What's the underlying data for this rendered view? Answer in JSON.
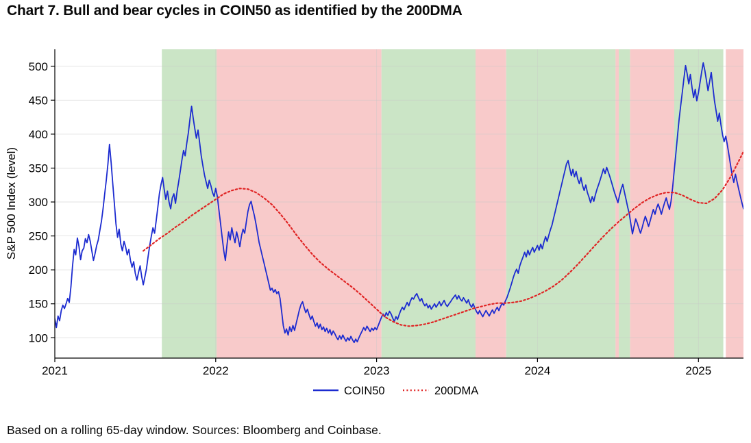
{
  "chart_data": {
    "type": "line",
    "title": "Chart 7. Bull and bear cycles in COIN50 as identified by the 200DMA",
    "caption": "Based on a rolling 65-day window. Sources: Bloomberg and Coinbase.",
    "ylabel": "S&P 500 Index (level)",
    "xlabel": "",
    "xlim": [
      2021.0,
      2025.28
    ],
    "ylim": [
      70,
      525
    ],
    "xticks": [
      2021,
      2022,
      2023,
      2024,
      2025
    ],
    "yticks": [
      100,
      150,
      200,
      250,
      300,
      350,
      400,
      450,
      500
    ],
    "grid": true,
    "colors": {
      "bull_band": "#cbe5c6",
      "bear_band": "#f8caca",
      "coin50": "#1c2bd0",
      "dma": "#e02424",
      "grid": "#c8c8c8",
      "axis": "#000000"
    },
    "legend": {
      "position": "bottom-center",
      "entries": [
        {
          "label": "COIN50",
          "style": "solid",
          "color": "#1c2bd0"
        },
        {
          "label": "200DMA",
          "style": "dotted",
          "color": "#e02424"
        }
      ]
    },
    "bands": [
      {
        "start": 2021.665,
        "end": 2022.005,
        "type": "bull"
      },
      {
        "start": 2022.005,
        "end": 2023.03,
        "type": "bear"
      },
      {
        "start": 2023.03,
        "end": 2023.615,
        "type": "bull"
      },
      {
        "start": 2023.615,
        "end": 2023.805,
        "type": "bear"
      },
      {
        "start": 2023.805,
        "end": 2024.485,
        "type": "bull"
      },
      {
        "start": 2024.485,
        "end": 2024.505,
        "type": "bear"
      },
      {
        "start": 2024.505,
        "end": 2024.575,
        "type": "bull"
      },
      {
        "start": 2024.575,
        "end": 2024.85,
        "type": "bear"
      },
      {
        "start": 2024.85,
        "end": 2025.155,
        "type": "bull"
      },
      {
        "start": 2025.17,
        "end": 2025.3,
        "type": "bear"
      }
    ],
    "series": [
      {
        "name": "COIN50",
        "t0": 2021.0,
        "dt": 0.01,
        "values": [
          128,
          115,
          132,
          125,
          140,
          148,
          143,
          150,
          158,
          152,
          175,
          205,
          230,
          222,
          247,
          235,
          215,
          228,
          232,
          246,
          240,
          252,
          242,
          228,
          214,
          224,
          236,
          244,
          258,
          272,
          290,
          312,
          332,
          356,
          385,
          358,
          328,
          298,
          268,
          248,
          260,
          238,
          228,
          242,
          234,
          222,
          230,
          214,
          204,
          212,
          195,
          185,
          196,
          206,
          190,
          178,
          190,
          202,
          220,
          236,
          250,
          262,
          254,
          272,
          292,
          312,
          326,
          336,
          318,
          304,
          316,
          300,
          290,
          306,
          312,
          298,
          316,
          330,
          346,
          362,
          376,
          368,
          386,
          402,
          422,
          441,
          424,
          408,
          394,
          406,
          388,
          368,
          354,
          340,
          330,
          320,
          332,
          324,
          314,
          308,
          320,
          308,
          288,
          268,
          248,
          228,
          214,
          236,
          256,
          244,
          262,
          250,
          240,
          256,
          246,
          234,
          250,
          260,
          254,
          270,
          286,
          296,
          301,
          290,
          280,
          268,
          254,
          240,
          230,
          220,
          210,
          200,
          190,
          180,
          170,
          173,
          167,
          171,
          165,
          168,
          158,
          138,
          118,
          107,
          113,
          104,
          116,
          109,
          118,
          111,
          121,
          131,
          141,
          149,
          153,
          144,
          137,
          142,
          134,
          127,
          132,
          124,
          117,
          122,
          114,
          120,
          112,
          116,
          109,
          114,
          107,
          112,
          104,
          110,
          106,
          101,
          97,
          103,
          98,
          104,
          99,
          95,
          100,
          96,
          102,
          97,
          93,
          98,
          94,
          100,
          105,
          110,
          115,
          111,
          117,
          113,
          109,
          114,
          111,
          115,
          112,
          118,
          124,
          130,
          135,
          131,
          137,
          133,
          139,
          135,
          129,
          124,
          131,
          127,
          134,
          140,
          145,
          141,
          147,
          152,
          147,
          154,
          159,
          157,
          162,
          165,
          159,
          154,
          158,
          151,
          147,
          150,
          144,
          148,
          142,
          146,
          150,
          145,
          149,
          153,
          147,
          151,
          155,
          149,
          146,
          150,
          153,
          157,
          160,
          163,
          157,
          162,
          157,
          154,
          159,
          155,
          151,
          156,
          149,
          145,
          150,
          144,
          139,
          135,
          140,
          135,
          131,
          136,
          140,
          136,
          132,
          137,
          141,
          136,
          141,
          145,
          140,
          146,
          151,
          148,
          154,
          159,
          166,
          173,
          181,
          189,
          196,
          201,
          195,
          206,
          213,
          219,
          226,
          219,
          229,
          222,
          228,
          233,
          226,
          231,
          236,
          229,
          238,
          231,
          241,
          249,
          242,
          251,
          259,
          266,
          276,
          286,
          296,
          306,
          316,
          326,
          336,
          346,
          356,
          361,
          350,
          339,
          348,
          337,
          345,
          334,
          327,
          336,
          324,
          317,
          325,
          314,
          307,
          299,
          308,
          301,
          311,
          319,
          326,
          333,
          341,
          349,
          342,
          351,
          344,
          337,
          329,
          321,
          313,
          306,
          299,
          310,
          319,
          326,
          315,
          304,
          293,
          283,
          268,
          253,
          264,
          275,
          269,
          261,
          254,
          262,
          271,
          279,
          272,
          264,
          272,
          281,
          289,
          282,
          291,
          297,
          290,
          282,
          291,
          299,
          306,
          297,
          289,
          301,
          322,
          347,
          372,
          397,
          422,
          442,
          462,
          482,
          501,
          489,
          474,
          488,
          469,
          454,
          466,
          449,
          461,
          476,
          491,
          505,
          494,
          479,
          464,
          478,
          491,
          469,
          449,
          434,
          419,
          431,
          414,
          399,
          389,
          397,
          384,
          369,
          354,
          339,
          329,
          341,
          330,
          319,
          309,
          299,
          290
        ]
      },
      {
        "name": "200DMA",
        "t0": 2021.55,
        "dt": 0.05,
        "values": [
          228,
          237,
          246,
          254,
          263,
          271,
          280,
          288,
          296,
          304,
          312,
          317,
          320,
          319,
          314,
          306,
          296,
          283,
          268,
          252,
          237,
          223,
          211,
          201,
          192,
          183,
          174,
          164,
          153,
          142,
          131,
          124,
          119,
          117,
          118,
          120,
          123,
          127,
          131,
          135,
          139,
          143,
          146,
          149,
          151,
          151,
          152,
          154,
          158,
          163,
          169,
          176,
          185,
          196,
          208,
          221,
          234,
          247,
          259,
          270,
          280,
          290,
          299,
          306,
          311,
          314,
          314,
          310,
          304,
          299,
          298,
          305,
          318,
          337,
          360,
          384
        ]
      }
    ]
  }
}
